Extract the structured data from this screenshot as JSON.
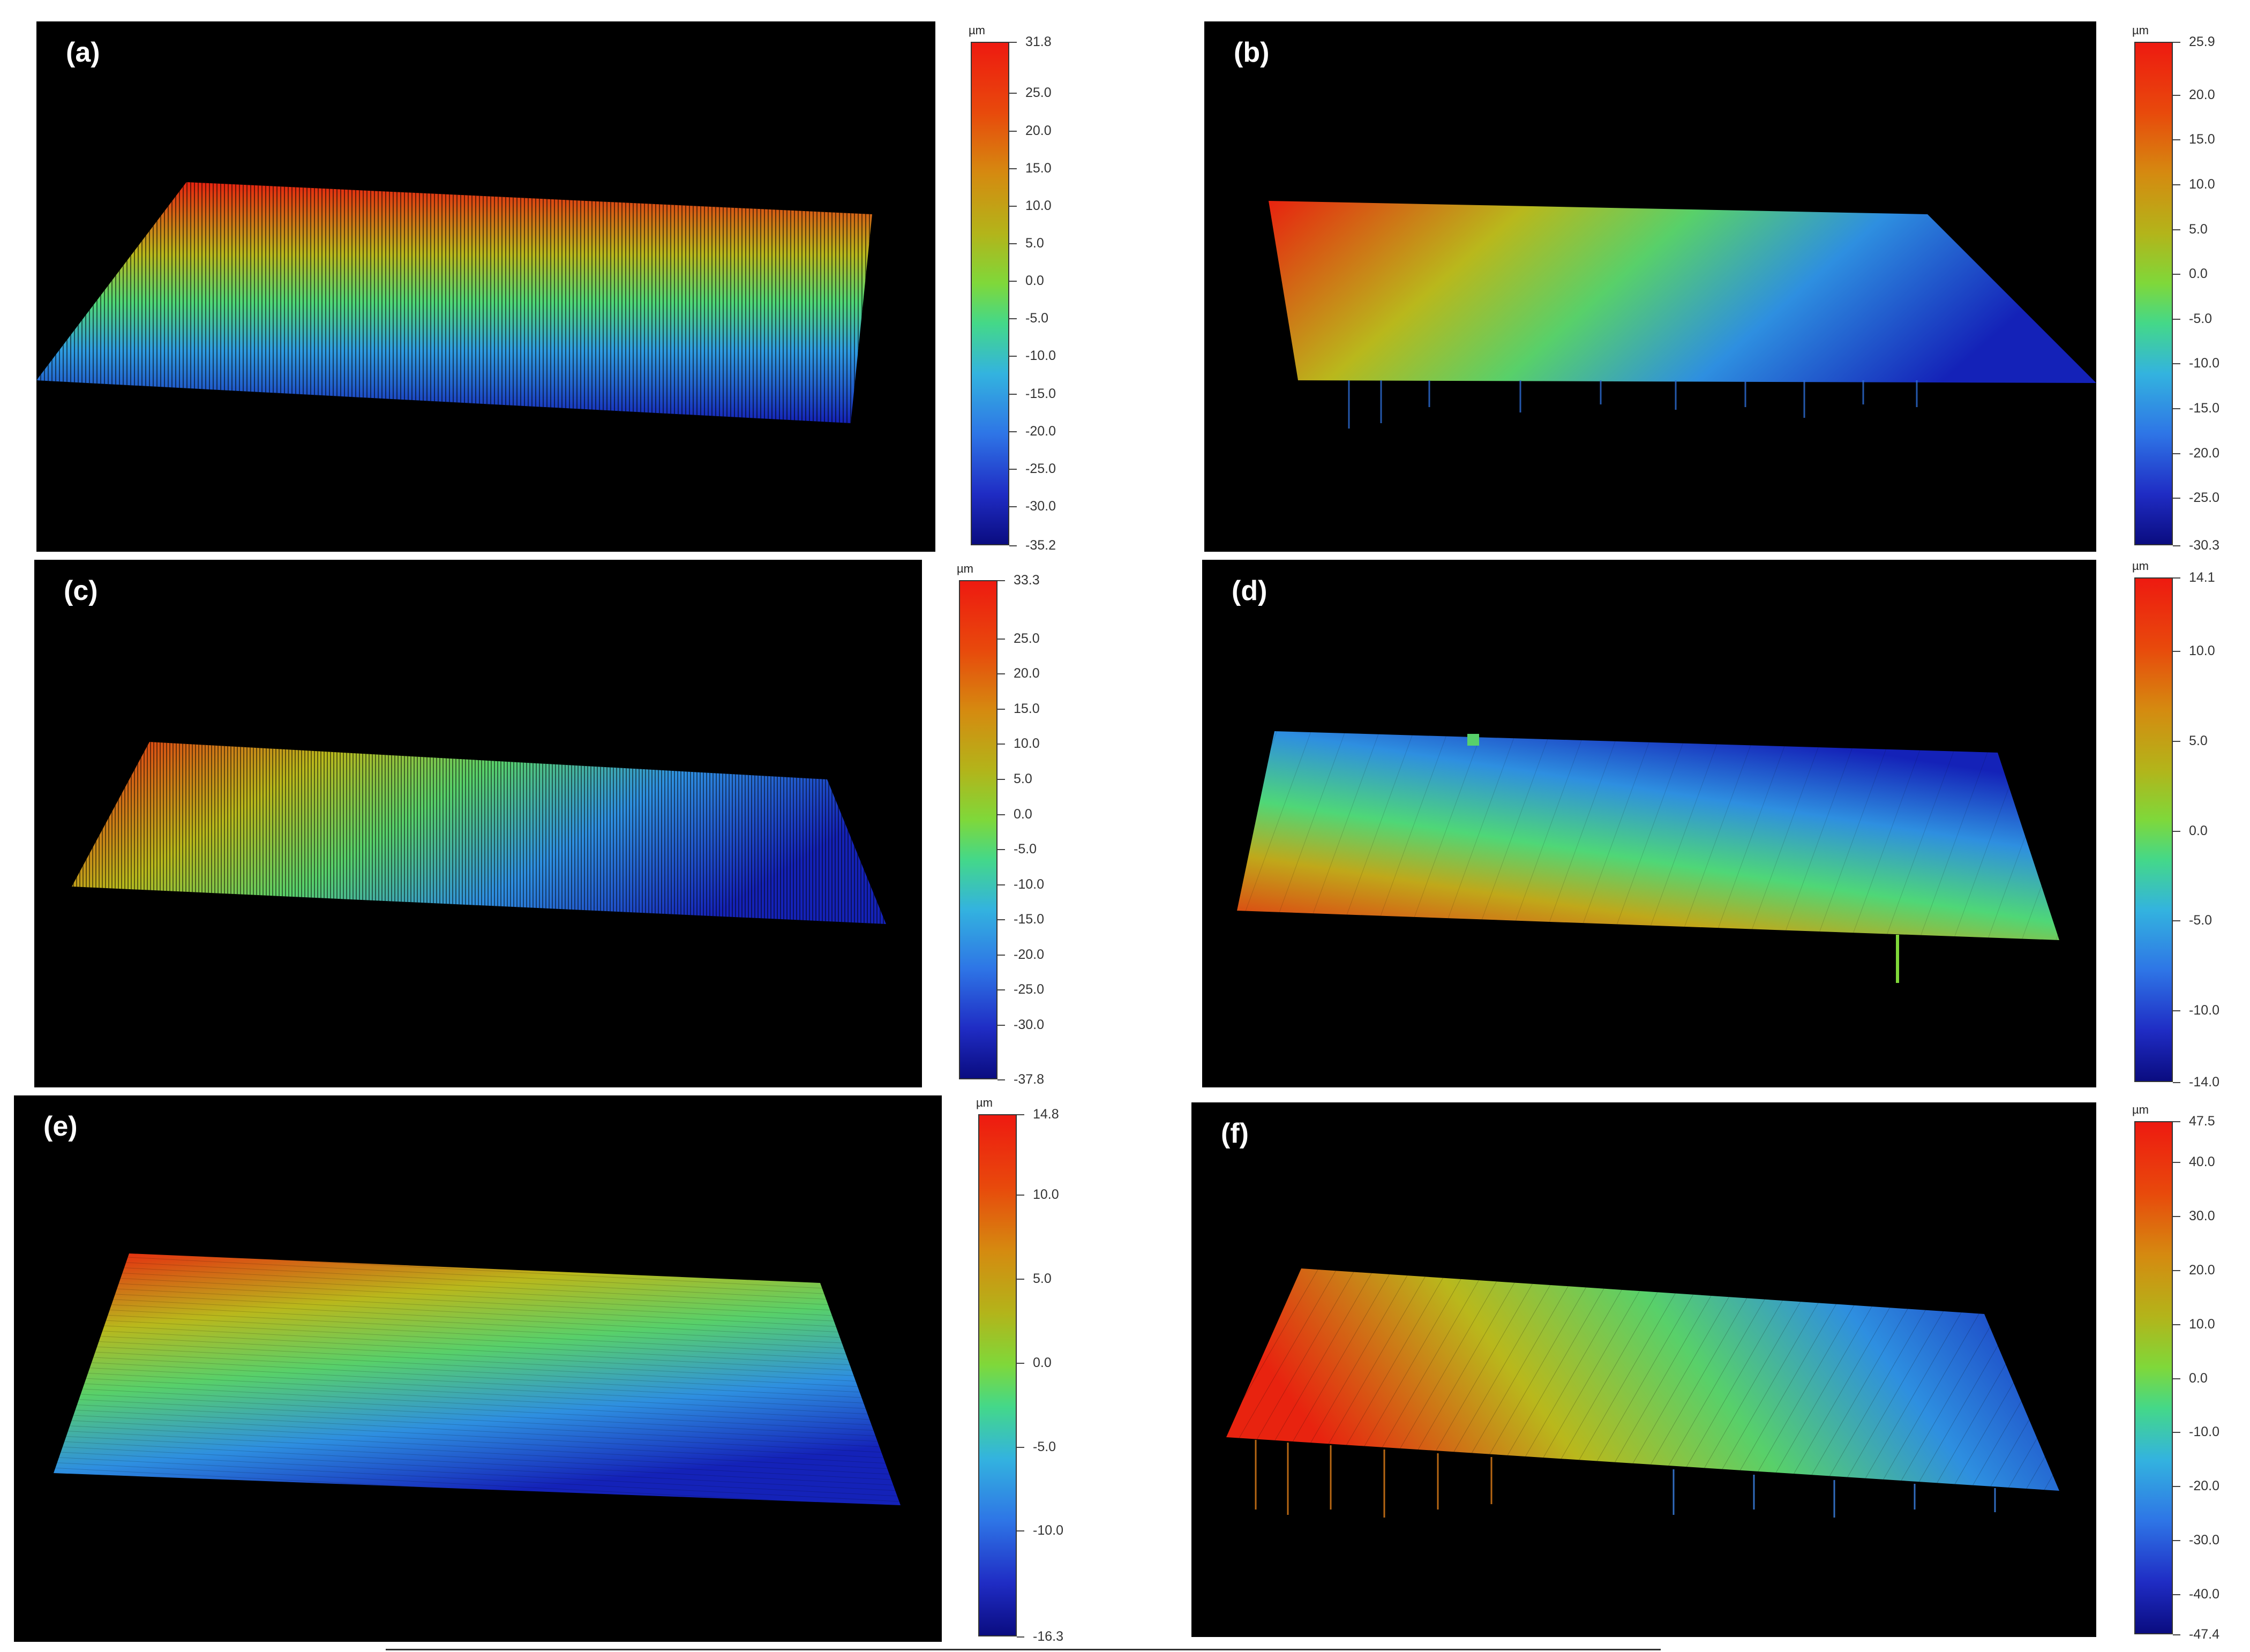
{
  "unit": "µm",
  "panels": [
    {
      "id": "a",
      "label": "(a)",
      "max": 31.8,
      "min": -35.2,
      "ticks": [
        "31.8",
        "25.0",
        "20.0",
        "15.0",
        "10.0",
        "5.0",
        "0.0",
        "-5.0",
        "-10.0",
        "-15.0",
        "-20.0",
        "-25.0",
        "-30.0",
        "-35.2"
      ]
    },
    {
      "id": "b",
      "label": "(b)",
      "max": 25.9,
      "min": -30.3,
      "ticks": [
        "25.9",
        "20.0",
        "15.0",
        "10.0",
        "5.0",
        "0.0",
        "-5.0",
        "-10.0",
        "-15.0",
        "-20.0",
        "-25.0",
        "-30.3"
      ]
    },
    {
      "id": "c",
      "label": "(c)",
      "max": 33.3,
      "min": -37.8,
      "ticks": [
        "33.3",
        "25.0",
        "20.0",
        "15.0",
        "10.0",
        "5.0",
        "0.0",
        "-5.0",
        "-10.0",
        "-15.0",
        "-20.0",
        "-25.0",
        "-30.0",
        "-37.8"
      ]
    },
    {
      "id": "d",
      "label": "(d)",
      "max": 14.1,
      "min": -14.0,
      "ticks": [
        "14.1",
        "10.0",
        "5.0",
        "0.0",
        "-5.0",
        "-10.0",
        "-14.0"
      ]
    },
    {
      "id": "e",
      "label": "(e)",
      "max": 14.8,
      "min": -16.3,
      "ticks": [
        "14.8",
        "10.0",
        "5.0",
        "0.0",
        "-5.0",
        "-10.0",
        "-16.3"
      ]
    },
    {
      "id": "f",
      "label": "(f)",
      "max": 47.5,
      "min": -47.4,
      "ticks": [
        "47.5",
        "40.0",
        "30.0",
        "20.0",
        "10.0",
        "0.0",
        "-10.0",
        "-20.0",
        "-30.0",
        "-40.0",
        "-47.4"
      ]
    }
  ]
}
